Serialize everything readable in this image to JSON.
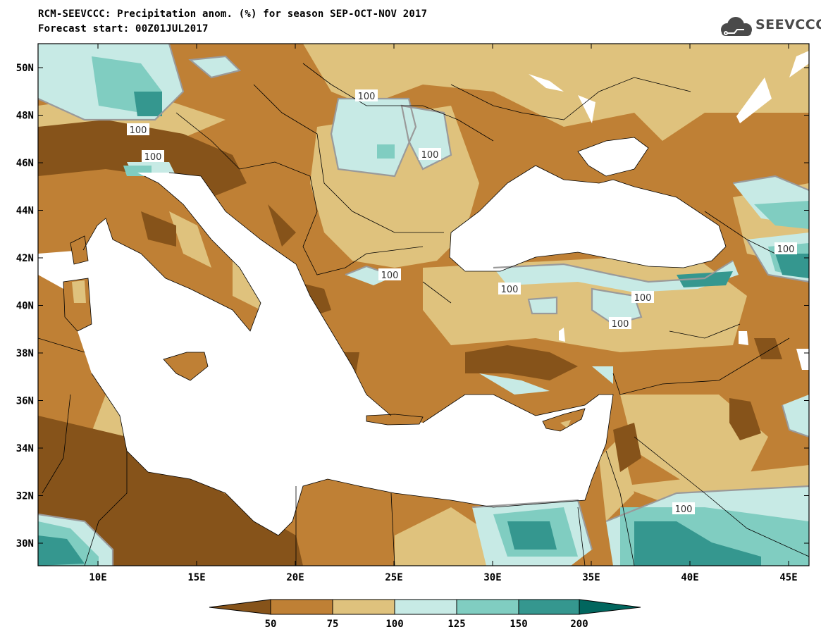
{
  "header": {
    "title_line1": "RCM-SEEVCCC: Precipitation anom. (%) for season SEP-OCT-NOV 2017",
    "title_line2": "Forecast start: 00Z01JUL2017",
    "logo_text": "SEEVCCC"
  },
  "map": {
    "lat_labels": [
      "50N",
      "48N",
      "46N",
      "44N",
      "42N",
      "40N",
      "38N",
      "36N",
      "34N",
      "32N",
      "30N"
    ],
    "lon_labels": [
      "10E",
      "15E",
      "20E",
      "25E",
      "30E",
      "35E",
      "40E",
      "45E"
    ],
    "contour_labels": [
      {
        "text": "100"
      },
      {
        "text": "100"
      },
      {
        "text": "100"
      },
      {
        "text": "100"
      },
      {
        "text": "100"
      },
      {
        "text": "100"
      },
      {
        "text": "100"
      },
      {
        "text": "100"
      },
      {
        "text": "100"
      },
      {
        "text": "100"
      }
    ]
  },
  "colorbar": {
    "labels": [
      "50",
      "75",
      "100",
      "125",
      "150",
      "200"
    ],
    "colors": {
      "below_50": "#86531a",
      "c50_75": "#bf8035",
      "c75_100": "#dfc27d",
      "c100_125": "#c7eae5",
      "c125_150": "#80cdc1",
      "c150_200": "#35978f",
      "above_200": "#01665e"
    }
  }
}
